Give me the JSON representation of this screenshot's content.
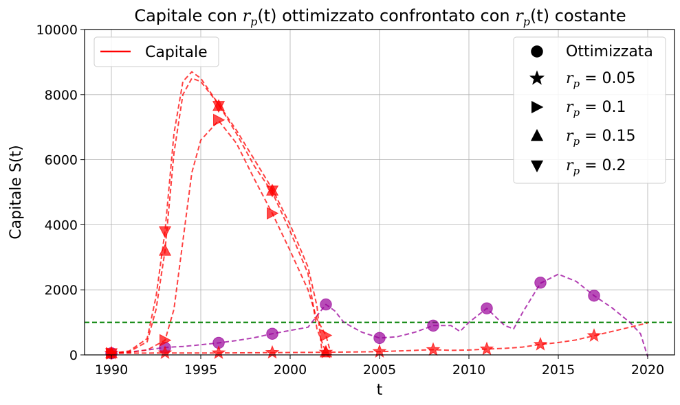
{
  "chart_data": {
    "type": "line",
    "title_parts": [
      "Capitale con ",
      "r",
      "p",
      "(t)",
      " ottimizzato confrontato con ",
      "r",
      "p",
      "(t)",
      " costante"
    ],
    "xlabel": "t",
    "ylabel": "Capitale S(t)",
    "xlim": [
      1988.5,
      2021.5
    ],
    "ylim": [
      0,
      10000
    ],
    "x_ticks": [
      1990,
      1995,
      2000,
      2005,
      2010,
      2015,
      2020
    ],
    "y_ticks": [
      0,
      2000,
      4000,
      6000,
      8000,
      10000
    ],
    "grid": true,
    "threshold": {
      "y": 1000,
      "color": "#008000",
      "style": "dashed"
    },
    "series": [
      {
        "name": "Ottimizzata",
        "color": "#990099",
        "marker": "circle",
        "x": [
          1990,
          1992,
          1993,
          1994,
          1995,
          1996,
          1997,
          1998,
          1999,
          2000,
          2001,
          2002,
          2002.5,
          2003,
          2004,
          2005,
          2006,
          2007,
          2008,
          2009,
          2009.5,
          2010,
          2011,
          2012,
          2012.5,
          2013,
          2014,
          2015,
          2016,
          2017,
          2018,
          2019,
          2019.6,
          2020
        ],
        "values": [
          30,
          150,
          230,
          260,
          310,
          370,
          440,
          530,
          650,
          750,
          850,
          1550,
          1350,
          1000,
          700,
          520,
          560,
          700,
          900,
          900,
          720,
          1000,
          1430,
          900,
          800,
          1300,
          2200,
          2480,
          2260,
          1820,
          1450,
          1000,
          650,
          -50
        ],
        "marker_x": [
          1990,
          1993,
          1996,
          1999,
          2002,
          2005,
          2008,
          2011,
          2014,
          2017
        ],
        "marker_values": [
          50,
          220,
          370,
          650,
          1550,
          520,
          900,
          1430,
          2220,
          1820
        ]
      },
      {
        "name": "r_p = 0.05",
        "color": "#ff0000",
        "marker": "star",
        "x": [
          1990,
          1993,
          1996,
          1999,
          2002,
          2005,
          2008,
          2009,
          2010,
          2011,
          2012,
          2013,
          2014,
          2015,
          2016,
          2017,
          2018,
          2019,
          2020
        ],
        "values": [
          50,
          60,
          60,
          70,
          80,
          100,
          160,
          140,
          150,
          180,
          200,
          240,
          320,
          380,
          460,
          590,
          720,
          850,
          980
        ],
        "marker_x": [
          1990,
          1993,
          1996,
          1999,
          2002,
          2005,
          2008,
          2011,
          2014,
          2017
        ],
        "marker_values": [
          50,
          60,
          60,
          70,
          80,
          100,
          160,
          180,
          320,
          590
        ]
      },
      {
        "name": "r_p = 0.1",
        "color": "#ff0000",
        "marker": "triangle-right",
        "x": [
          1990,
          1991,
          1992,
          1993,
          1993.5,
          1994,
          1994.5,
          1995,
          1996,
          1997,
          1998,
          1999,
          2000,
          2001,
          2001.5,
          2002,
          2002.3
        ],
        "values": [
          50,
          80,
          150,
          450,
          1400,
          3500,
          5600,
          6600,
          7200,
          6500,
          5400,
          4350,
          3200,
          2000,
          1100,
          600,
          0
        ],
        "marker_x": [
          1990,
          1993,
          1996,
          1999,
          2002
        ],
        "marker_values": [
          50,
          450,
          7220,
          4350,
          600
        ]
      },
      {
        "name": "r_p = 0.15",
        "color": "#ff0000",
        "marker": "triangle-up",
        "x": [
          1990,
          1991,
          1992,
          1992.5,
          1993,
          1993.5,
          1994,
          1994.5,
          1995,
          1996,
          1997,
          1998,
          1999,
          2000,
          2001,
          2001.5,
          2002
        ],
        "values": [
          50,
          100,
          400,
          1400,
          3200,
          6200,
          8000,
          8500,
          8400,
          7700,
          6800,
          5800,
          5000,
          3800,
          2500,
          800,
          80
        ],
        "marker_x": [
          1990,
          1993,
          1996,
          1999,
          2002
        ],
        "marker_values": [
          50,
          3200,
          7650,
          5050,
          80
        ]
      },
      {
        "name": "r_p = 0.2",
        "color": "#ff0000",
        "marker": "triangle-down",
        "x": [
          1990,
          1991,
          1992,
          1992.5,
          1993,
          1993.5,
          1994,
          1994.5,
          1995,
          1996,
          1997,
          1998,
          1999,
          2000,
          2001,
          2001.5,
          2001.8
        ],
        "values": [
          50,
          120,
          500,
          1800,
          3800,
          6800,
          8400,
          8700,
          8500,
          7700,
          6900,
          6000,
          5100,
          4000,
          2700,
          1500,
          0
        ],
        "marker_x": [
          1990,
          1993,
          1996,
          1999
        ],
        "marker_values": [
          50,
          3800,
          7650,
          5050
        ]
      }
    ],
    "legend_left": {
      "label": "Capitale",
      "color": "#ff0000",
      "placement": "top-left"
    },
    "legend_right": {
      "placement": "top-right",
      "entries": [
        {
          "marker": "circle",
          "text": "Ottimizzata"
        },
        {
          "marker": "star",
          "math": true,
          "sym": "r",
          "sub": "p",
          "rhs": " = 0.05"
        },
        {
          "marker": "triangle-right",
          "math": true,
          "sym": "r",
          "sub": "p",
          "rhs": " = 0.1"
        },
        {
          "marker": "triangle-up",
          "math": true,
          "sym": "r",
          "sub": "p",
          "rhs": " = 0.15"
        },
        {
          "marker": "triangle-down",
          "math": true,
          "sym": "r",
          "sub": "p",
          "rhs": " = 0.2"
        }
      ]
    }
  }
}
